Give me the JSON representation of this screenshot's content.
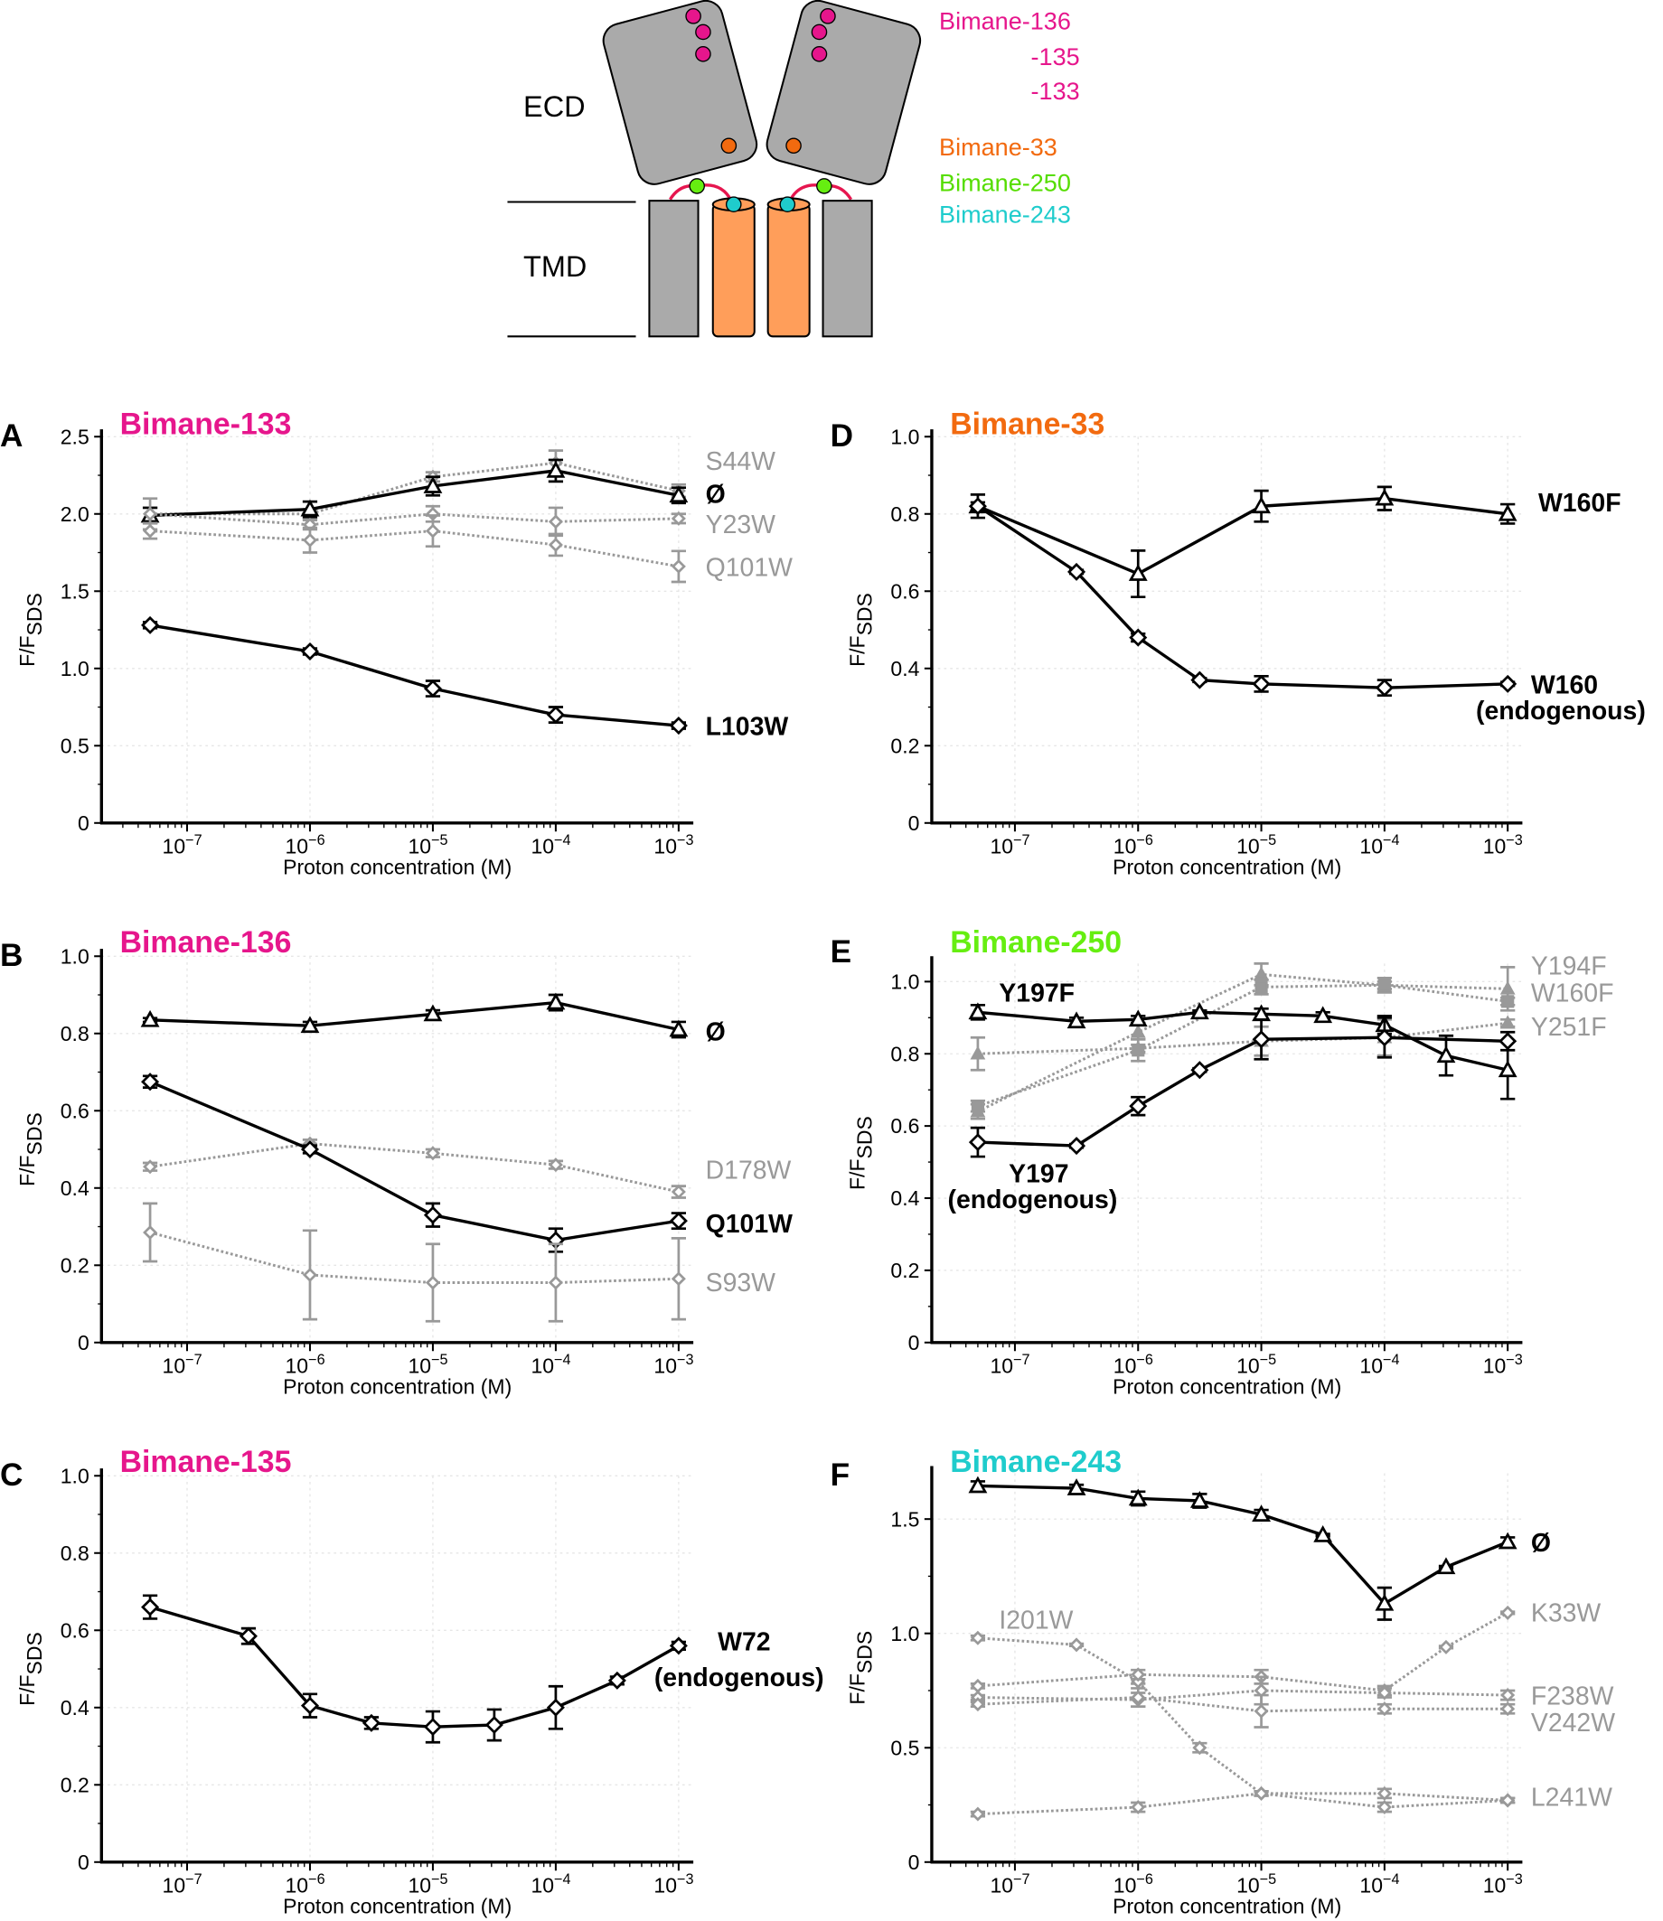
{
  "diagram": {
    "ecd_label": "ECD",
    "tmd_label": "TMD",
    "labels": [
      {
        "text": "Bimane-136",
        "color": "#e6168c"
      },
      {
        "text": "-135",
        "color": "#e6168c"
      },
      {
        "text": "-133",
        "color": "#e6168c"
      },
      {
        "text": "Bimane-33",
        "color": "#f26a0f"
      },
      {
        "text": "Bimane-250",
        "color": "#66ee11"
      },
      {
        "text": "Bimane-243",
        "color": "#1fcccc"
      }
    ],
    "colors": {
      "domain": "#aaaaaa",
      "helix": "#ff9e5a",
      "loop": "#e6164f"
    }
  },
  "chart_data": [
    {
      "panel": "A",
      "type": "line",
      "title": "Bimane-133",
      "title_color": "#e6168c",
      "xlabel": "Proton concentration (M)",
      "ylabel": "F/F",
      "ylabel_sub": "SDS",
      "xscale": "log",
      "xlim": [
        3e-08,
        0.0015
      ],
      "ylim": [
        0,
        2.5
      ],
      "grid": true,
      "yticks": [
        "0",
        "0.5",
        "1.0",
        "1.5",
        "2.0",
        "2.5"
      ],
      "ytick_values": [
        0,
        0.5,
        1,
        1.5,
        2,
        2.5
      ],
      "xtick_exponents": [
        "−7",
        "−6",
        "−5",
        "−4",
        "−3"
      ],
      "series": [
        {
          "name": "S44W",
          "style": "gray",
          "marker": "diamond",
          "x": [
            5e-08,
            1e-06,
            1e-05,
            0.0001,
            0.001
          ],
          "y": [
            2.0,
            2.0,
            2.24,
            2.33,
            2.15
          ],
          "err": [
            0.04,
            0.03,
            0.03,
            0.08,
            0.04
          ]
        },
        {
          "name": "Ø",
          "style": "black",
          "marker": "triangle",
          "x": [
            5e-08,
            1e-06,
            1e-05,
            0.0001,
            0.001
          ],
          "y": [
            1.99,
            2.03,
            2.18,
            2.28,
            2.12
          ],
          "err": [
            0.05,
            0.05,
            0.06,
            0.07,
            0.05
          ]
        },
        {
          "name": "Y23W",
          "style": "gray",
          "marker": "diamond",
          "x": [
            5e-08,
            1e-06,
            1e-05,
            0.0001,
            0.001
          ],
          "y": [
            2.0,
            1.93,
            2.0,
            1.95,
            1.97
          ],
          "err": [
            0.1,
            0.03,
            0.05,
            0.09,
            0.03
          ]
        },
        {
          "name": "Q101W",
          "style": "gray",
          "marker": "diamond",
          "x": [
            5e-08,
            1e-06,
            1e-05,
            0.0001,
            0.001
          ],
          "y": [
            1.89,
            1.83,
            1.89,
            1.8,
            1.66
          ],
          "err": [
            0.05,
            0.08,
            0.1,
            0.07,
            0.1
          ]
        },
        {
          "name": "L103W",
          "style": "black",
          "marker": "diamond",
          "x": [
            5e-08,
            1e-06,
            1e-05,
            0.0001,
            0.001
          ],
          "y": [
            1.28,
            1.11,
            0.87,
            0.7,
            0.63
          ],
          "err": [
            0.02,
            0.02,
            0.05,
            0.05,
            0.02
          ]
        }
      ]
    },
    {
      "panel": "B",
      "type": "line",
      "title": "Bimane-136",
      "title_color": "#e6168c",
      "xlabel": "Proton concentration (M)",
      "ylabel": "F/F",
      "ylabel_sub": "SDS",
      "xscale": "log",
      "xlim": [
        3e-08,
        0.0015
      ],
      "ylim": [
        0,
        1.0
      ],
      "grid": true,
      "yticks": [
        "0",
        "0.2",
        "0.4",
        "0.6",
        "0.8",
        "1.0"
      ],
      "ytick_values": [
        0,
        0.2,
        0.4,
        0.6,
        0.8,
        1.0
      ],
      "xtick_exponents": [
        "−7",
        "−6",
        "−5",
        "−4",
        "−3"
      ],
      "series": [
        {
          "name": "Ø",
          "style": "black",
          "marker": "triangle",
          "x": [
            5e-08,
            1e-06,
            1e-05,
            0.0001,
            0.001
          ],
          "y": [
            0.835,
            0.82,
            0.85,
            0.88,
            0.81
          ],
          "err": [
            0.005,
            0.01,
            0.01,
            0.02,
            0.02
          ]
        },
        {
          "name": "D178W",
          "style": "gray",
          "marker": "diamond",
          "x": [
            5e-08,
            1e-06,
            1e-05,
            0.0001,
            0.001
          ],
          "y": [
            0.455,
            0.515,
            0.49,
            0.46,
            0.39
          ],
          "err": [
            0.01,
            0.01,
            0.01,
            0.01,
            0.015
          ]
        },
        {
          "name": "Q101W",
          "style": "black",
          "marker": "diamond",
          "x": [
            5e-08,
            1e-06,
            1e-05,
            0.0001,
            0.001
          ],
          "y": [
            0.675,
            0.5,
            0.33,
            0.265,
            0.315
          ],
          "err": [
            0.015,
            0.01,
            0.03,
            0.03,
            0.02
          ]
        },
        {
          "name": "S93W",
          "style": "gray",
          "marker": "diamond",
          "x": [
            5e-08,
            1e-06,
            1e-05,
            0.0001,
            0.001
          ],
          "y": [
            0.285,
            0.175,
            0.155,
            0.155,
            0.165
          ],
          "err": [
            0.075,
            0.115,
            0.1,
            0.1,
            0.105
          ]
        }
      ]
    },
    {
      "panel": "C",
      "type": "line",
      "title": "Bimane-135",
      "title_color": "#e6168c",
      "xlabel": "Proton concentration (M)",
      "ylabel": "F/F",
      "ylabel_sub": "SDS",
      "xscale": "log",
      "xlim": [
        3e-08,
        0.0015
      ],
      "ylim": [
        0,
        1.0
      ],
      "grid": true,
      "yticks": [
        "0",
        "0.2",
        "0.4",
        "0.6",
        "0.8",
        "1.0"
      ],
      "ytick_values": [
        0,
        0.2,
        0.4,
        0.6,
        0.8,
        1.0
      ],
      "xtick_exponents": [
        "−7",
        "−6",
        "−5",
        "−4",
        "−3"
      ],
      "series": [
        {
          "name": "W72",
          "note": "(endogenous)",
          "style": "black",
          "marker": "diamond",
          "x": [
            5e-08,
            3.16e-07,
            1e-06,
            3.16e-06,
            1e-05,
            3.16e-05,
            0.0001,
            0.000316,
            0.001
          ],
          "y": [
            0.66,
            0.585,
            0.405,
            0.36,
            0.35,
            0.355,
            0.4,
            0.47,
            0.56
          ],
          "err": [
            0.03,
            0.02,
            0.03,
            0.015,
            0.04,
            0.04,
            0.055,
            0.01,
            0.01
          ]
        }
      ]
    },
    {
      "panel": "D",
      "type": "line",
      "title": "Bimane-33",
      "title_color": "#f26a0f",
      "xlabel": "Proton concentration (M)",
      "ylabel": "F/F",
      "ylabel_sub": "SDS",
      "xscale": "log",
      "xlim": [
        3e-08,
        0.0015
      ],
      "ylim": [
        0,
        1.0
      ],
      "grid": true,
      "yticks": [
        "0",
        "0.2",
        "0.4",
        "0.6",
        "0.8",
        "1.0"
      ],
      "ytick_values": [
        0,
        0.2,
        0.4,
        0.6,
        0.8,
        1.0
      ],
      "xtick_exponents": [
        "−7",
        "−6",
        "−5",
        "−4",
        "−3"
      ],
      "series": [
        {
          "name": "W160F",
          "style": "black",
          "marker": "triangle",
          "x": [
            5e-08,
            1e-06,
            1e-05,
            0.0001,
            0.001
          ],
          "y": [
            0.82,
            0.645,
            0.82,
            0.84,
            0.8
          ],
          "err": [
            0.03,
            0.06,
            0.04,
            0.03,
            0.025
          ]
        },
        {
          "name": "W160",
          "note": "(endogenous)",
          "style": "black",
          "marker": "diamond",
          "x": [
            5e-08,
            3.16e-07,
            1e-06,
            3.16e-06,
            1e-05,
            0.0001,
            0.001
          ],
          "y": [
            0.82,
            0.65,
            0.48,
            0.37,
            0.36,
            0.35,
            0.36
          ],
          "err": [
            0.01,
            0.005,
            0.01,
            0.005,
            0.02,
            0.02,
            0.005
          ]
        }
      ]
    },
    {
      "panel": "E",
      "type": "line",
      "title": "Bimane-250",
      "title_color": "#66ee11",
      "xlabel": "Proton concentration (M)",
      "ylabel": "F/F",
      "ylabel_sub": "SDS",
      "xscale": "log",
      "xlim": [
        3e-08,
        0.0015
      ],
      "ylim": [
        0,
        1.05
      ],
      "grid": true,
      "yticks": [
        "0",
        "0.2",
        "0.4",
        "0.6",
        "0.8",
        "1.0"
      ],
      "ytick_values": [
        0,
        0.2,
        0.4,
        0.6,
        0.8,
        1.0
      ],
      "xtick_exponents": [
        "−7",
        "−6",
        "−5",
        "−4",
        "−3"
      ],
      "series": [
        {
          "name": "Y194F",
          "style": "gray",
          "marker": "triangle",
          "x": [
            5e-08,
            1e-06,
            1e-05,
            0.0001,
            0.001
          ],
          "y": [
            0.64,
            0.86,
            1.02,
            0.99,
            0.98
          ],
          "err": [
            0.02,
            0.02,
            0.03,
            0.01,
            0.06
          ]
        },
        {
          "name": "W160F",
          "style": "gray",
          "marker": "square",
          "x": [
            5e-08,
            1e-06,
            1e-05,
            0.0001,
            0.001
          ],
          "y": [
            0.655,
            0.81,
            0.985,
            0.99,
            0.945
          ],
          "err": [
            0.015,
            0.03,
            0.02,
            0.02,
            0.01
          ]
        },
        {
          "name": "Y251F",
          "style": "gray",
          "marker": "triangle",
          "x": [
            5e-08,
            1e-06,
            1e-05,
            0.0001,
            0.001
          ],
          "y": [
            0.8,
            0.815,
            0.835,
            0.845,
            0.885
          ],
          "err": [
            0.045,
            0.01,
            0.04,
            0.05,
            0.01
          ]
        },
        {
          "name": "Y197F",
          "style": "black",
          "marker": "triangle",
          "x": [
            5e-08,
            3.16e-07,
            1e-06,
            3.16e-06,
            1e-05,
            3.16e-05,
            0.0001,
            0.000316,
            0.001
          ],
          "y": [
            0.915,
            0.89,
            0.895,
            0.915,
            0.91,
            0.905,
            0.88,
            0.795,
            0.755
          ],
          "err": [
            0.02,
            0.01,
            0.01,
            0.005,
            0.015,
            0.01,
            0.025,
            0.055,
            0.08
          ]
        },
        {
          "name": "Y197",
          "note": "(endogenous)",
          "style": "black",
          "marker": "diamond",
          "x": [
            5e-08,
            3.16e-07,
            1e-06,
            3.16e-06,
            1e-05,
            0.0001,
            0.001
          ],
          "y": [
            0.555,
            0.545,
            0.655,
            0.755,
            0.84,
            0.845,
            0.835
          ],
          "err": [
            0.04,
            0.005,
            0.025,
            0.005,
            0.055,
            0.055,
            0.025
          ]
        }
      ]
    },
    {
      "panel": "F",
      "type": "line",
      "title": "Bimane-243",
      "title_color": "#1fcccc",
      "xlabel": "Proton concentration (M)",
      "ylabel": "F/F",
      "ylabel_sub": "SDS",
      "xscale": "log",
      "xlim": [
        3e-08,
        0.0015
      ],
      "ylim": [
        0,
        1.7
      ],
      "grid": true,
      "yticks": [
        "0",
        "0.5",
        "1.0",
        "1.5"
      ],
      "ytick_values": [
        0,
        0.5,
        1.0,
        1.5
      ],
      "xtick_exponents": [
        "−7",
        "−6",
        "−5",
        "−4",
        "−3"
      ],
      "series": [
        {
          "name": "Ø",
          "style": "black",
          "marker": "triangle",
          "x": [
            5e-08,
            3.16e-07,
            1e-06,
            3.16e-06,
            1e-05,
            3.16e-05,
            0.0001,
            0.000316,
            0.001
          ],
          "y": [
            1.645,
            1.635,
            1.59,
            1.58,
            1.52,
            1.43,
            1.13,
            1.29,
            1.4
          ],
          "err": [
            0.02,
            0.015,
            0.03,
            0.03,
            0.02,
            0.005,
            0.07,
            0.005,
            0.02
          ]
        },
        {
          "name": "I201W",
          "style": "gray",
          "marker": "diamond",
          "x": [
            5e-08,
            3.16e-07,
            1e-06,
            3.16e-06,
            1e-05,
            0.0001,
            0.001
          ],
          "y": [
            0.98,
            0.95,
            0.79,
            0.5,
            0.3,
            0.3,
            0.27
          ],
          "err": [
            0.01,
            0.005,
            0.01,
            0.02,
            0.01,
            0.02,
            0.01
          ]
        },
        {
          "name": "K33W",
          "style": "gray",
          "marker": "diamond",
          "x": [
            5e-08,
            1e-06,
            1e-05,
            0.0001,
            0.000316,
            0.001
          ],
          "y": [
            0.77,
            0.82,
            0.81,
            0.75,
            0.94,
            1.09
          ],
          "err": [
            0.01,
            0.02,
            0.03,
            0.02,
            0.005,
            0.005
          ]
        },
        {
          "name": "F238W",
          "style": "gray",
          "marker": "diamond",
          "x": [
            5e-08,
            1e-06,
            1e-05,
            0.0001,
            0.001
          ],
          "y": [
            0.72,
            0.71,
            0.75,
            0.74,
            0.73
          ],
          "err": [
            0.01,
            0.03,
            0.06,
            0.02,
            0.02
          ]
        },
        {
          "name": "V242W",
          "style": "gray",
          "marker": "diamond",
          "x": [
            5e-08,
            1e-06,
            1e-05,
            0.0001,
            0.001
          ],
          "y": [
            0.69,
            0.72,
            0.66,
            0.67,
            0.67
          ],
          "err": [
            0.01,
            0.04,
            0.07,
            0.02,
            0.02
          ]
        },
        {
          "name": "L241W",
          "style": "gray",
          "marker": "diamond",
          "x": [
            5e-08,
            1e-06,
            1e-05,
            0.0001,
            0.001
          ],
          "y": [
            0.21,
            0.24,
            0.3,
            0.24,
            0.27
          ],
          "err": [
            0.01,
            0.02,
            0.01,
            0.02,
            0.01
          ]
        }
      ]
    }
  ]
}
